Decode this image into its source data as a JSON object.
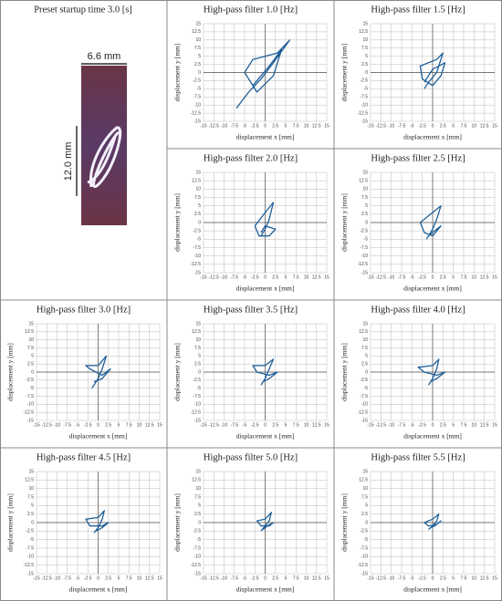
{
  "photo": {
    "title": "Preset startup time 3.0 [s]",
    "width_label": "6.6 mm",
    "height_label": "12.0 mm"
  },
  "chart_data": [
    {
      "type": "line",
      "title": "High-pass filter 1.0 [Hz]",
      "xlabel": "displacement x [mm]",
      "ylabel": "displacement y [mm]",
      "color": "#1f5f99",
      "grid": true,
      "xlim": [
        -15,
        15
      ],
      "ylim": [
        -15,
        15
      ],
      "xticks": [
        -15,
        -12.5,
        -10,
        -7.5,
        -5,
        -2.5,
        0,
        2.5,
        5,
        7.5,
        10,
        12.5,
        15
      ],
      "yticks": [
        -15,
        -12.5,
        -10,
        -7.5,
        -5,
        -2.5,
        0,
        2.5,
        5,
        7.5,
        10,
        12.5,
        15
      ],
      "x": [
        -7,
        -4,
        -1,
        2,
        6,
        3,
        -3,
        -5,
        -2,
        2,
        4,
        1,
        -3
      ],
      "values": [
        -11,
        -6,
        -2,
        3,
        10,
        6,
        4,
        0,
        -6,
        -1,
        7,
        2,
        -4
      ]
    },
    {
      "type": "line",
      "title": "High-pass filter 1.5 [Hz]",
      "xlabel": "displacement x [mm]",
      "ylabel": "displacement y [mm]",
      "color": "#1f5f99",
      "grid": true,
      "xlim": [
        -15,
        15
      ],
      "ylim": [
        -15,
        15
      ],
      "xticks": [
        -15,
        -12.5,
        -10,
        -7.5,
        -5,
        -2.5,
        0,
        2.5,
        5,
        7.5,
        10,
        12.5,
        15
      ],
      "yticks": [
        -15,
        -12.5,
        -10,
        -7.5,
        -5,
        -2.5,
        0,
        2.5,
        5,
        7.5,
        10,
        12.5,
        15
      ],
      "x": [
        -2,
        -1,
        1,
        2.5,
        1,
        -3,
        -2.5,
        0,
        2,
        3,
        0,
        -2
      ],
      "values": [
        -5,
        -3,
        0,
        6,
        4,
        2,
        -2,
        -4,
        -1,
        3,
        1,
        -3
      ]
    },
    {
      "type": "line",
      "title": "High-pass filter 2.0 [Hz]",
      "xlabel": "displacement x [mm]",
      "ylabel": "displacement y [mm]",
      "color": "#1f5f99",
      "grid": true,
      "xlim": [
        -15,
        15
      ],
      "ylim": [
        -15,
        15
      ],
      "xticks": [
        -15,
        -12.5,
        -10,
        -7.5,
        -5,
        -2.5,
        0,
        2.5,
        5,
        7.5,
        10,
        12.5,
        15
      ],
      "yticks": [
        -15,
        -12.5,
        -10,
        -7.5,
        -5,
        -2.5,
        0,
        2.5,
        5,
        7.5,
        10,
        12.5,
        15
      ],
      "x": [
        -1,
        0,
        1,
        2,
        0,
        -2.5,
        -1.5,
        1,
        2.5,
        0,
        -1
      ],
      "values": [
        -4,
        -2,
        1,
        6,
        3,
        -1,
        -4,
        -4,
        -2,
        -1,
        -3
      ]
    },
    {
      "type": "line",
      "title": "High-pass filter 2.5 [Hz]",
      "xlabel": "displacement x [mm]",
      "ylabel": "displacement y [mm]",
      "color": "#1f5f99",
      "grid": true,
      "xlim": [
        -15,
        15
      ],
      "ylim": [
        -15,
        15
      ],
      "xticks": [
        -15,
        -12.5,
        -10,
        -7.5,
        -5,
        -2.5,
        0,
        2.5,
        5,
        7.5,
        10,
        12.5,
        15
      ],
      "yticks": [
        -15,
        -12.5,
        -10,
        -7.5,
        -5,
        -2.5,
        0,
        2.5,
        5,
        7.5,
        10,
        12.5,
        15
      ],
      "x": [
        -1.5,
        0,
        1,
        2,
        0,
        -3,
        -2,
        0,
        2,
        1,
        -1
      ],
      "values": [
        -5,
        -2,
        1,
        5,
        3,
        0,
        -3,
        -4,
        -1,
        -2,
        -4
      ]
    },
    {
      "type": "line",
      "title": "High-pass filter 3.0 [Hz]",
      "xlabel": "displacement x [mm]",
      "ylabel": "displacement y [mm]",
      "color": "#1f5f99",
      "grid": true,
      "xlim": [
        -15,
        15
      ],
      "ylim": [
        -15,
        15
      ],
      "xticks": [
        -15,
        -12.5,
        -10,
        -7.5,
        -5,
        -2.5,
        0,
        2.5,
        5,
        7.5,
        10,
        12.5,
        15
      ],
      "yticks": [
        -15,
        -12.5,
        -10,
        -7.5,
        -5,
        -2.5,
        0,
        2.5,
        5,
        7.5,
        10,
        12.5,
        15
      ],
      "x": [
        -1.5,
        0,
        1,
        2,
        0,
        -3,
        -2,
        1,
        3,
        1,
        -1
      ],
      "values": [
        -5,
        -2,
        1,
        5,
        2,
        2,
        1,
        -1,
        1,
        -2,
        -3
      ]
    },
    {
      "type": "line",
      "title": "High-pass filter 3.5 [Hz]",
      "xlabel": "displacement x [mm]",
      "ylabel": "displacement y [mm]",
      "color": "#1f5f99",
      "grid": true,
      "xlim": [
        -15,
        15
      ],
      "ylim": [
        -15,
        15
      ],
      "xticks": [
        -15,
        -12.5,
        -10,
        -7.5,
        -5,
        -2.5,
        0,
        2.5,
        5,
        7.5,
        10,
        12.5,
        15
      ],
      "yticks": [
        -15,
        -12.5,
        -10,
        -7.5,
        -5,
        -2.5,
        0,
        2.5,
        5,
        7.5,
        10,
        12.5,
        15
      ],
      "x": [
        -1,
        0,
        1,
        2,
        0,
        -3,
        -2,
        1,
        3,
        1,
        -0.5
      ],
      "values": [
        -4,
        -2,
        1,
        4,
        2,
        2,
        0,
        -1,
        0,
        -2,
        -3
      ]
    },
    {
      "type": "line",
      "title": "High-pass filter 4.0 [Hz]",
      "xlabel": "displacement x [mm]",
      "ylabel": "displacement y [mm]",
      "color": "#1f5f99",
      "grid": true,
      "xlim": [
        -15,
        15
      ],
      "ylim": [
        -15,
        15
      ],
      "xticks": [
        -15,
        -12.5,
        -10,
        -7.5,
        -5,
        -2.5,
        0,
        2.5,
        5,
        7.5,
        10,
        12.5,
        15
      ],
      "yticks": [
        -15,
        -12.5,
        -10,
        -7.5,
        -5,
        -2.5,
        0,
        2.5,
        5,
        7.5,
        10,
        12.5,
        15
      ],
      "x": [
        -1,
        0,
        1,
        1.5,
        0,
        -3.5,
        -2,
        1,
        3,
        1,
        -0.5
      ],
      "values": [
        -4,
        -2,
        1,
        4,
        2,
        1.5,
        0,
        -1,
        0,
        -2,
        -3
      ]
    },
    {
      "type": "line",
      "title": "High-pass filter 4.5 [Hz]",
      "xlabel": "displacement x [mm]",
      "ylabel": "displacement y [mm]",
      "color": "#1f5f99",
      "grid": true,
      "xlim": [
        -15,
        15
      ],
      "ylim": [
        -15,
        15
      ],
      "xticks": [
        -15,
        -12.5,
        -10,
        -7.5,
        -5,
        -2.5,
        0,
        2.5,
        5,
        7.5,
        10,
        12.5,
        15
      ],
      "yticks": [
        -15,
        -12.5,
        -10,
        -7.5,
        -5,
        -2.5,
        0,
        2.5,
        5,
        7.5,
        10,
        12.5,
        15
      ],
      "x": [
        -1,
        0,
        1,
        1.5,
        0,
        -3,
        -2,
        1,
        2.5,
        1,
        -0.5
      ],
      "values": [
        -3,
        -1.5,
        1,
        3.5,
        1.5,
        1,
        -1,
        -1,
        0,
        -1.5,
        -2.5
      ]
    },
    {
      "type": "line",
      "title": "High-pass filter 5.0 [Hz]",
      "xlabel": "displacement x [mm]",
      "ylabel": "displacement y [mm]",
      "color": "#1f5f99",
      "grid": true,
      "xlim": [
        -15,
        15
      ],
      "ylim": [
        -15,
        15
      ],
      "xticks": [
        -15,
        -12.5,
        -10,
        -7.5,
        -5,
        -2.5,
        0,
        2.5,
        5,
        7.5,
        10,
        12.5,
        15
      ],
      "yticks": [
        -15,
        -12.5,
        -10,
        -7.5,
        -5,
        -2.5,
        0,
        2.5,
        5,
        7.5,
        10,
        12.5,
        15
      ],
      "x": [
        -1,
        0,
        1,
        1.5,
        0,
        -2,
        -1,
        1,
        2,
        0.5,
        -0.5
      ],
      "values": [
        -2.5,
        -1,
        0.5,
        3,
        1,
        0.5,
        -1,
        -1,
        0,
        -1,
        -2
      ]
    },
    {
      "type": "line",
      "title": "High-pass filter 5.5 [Hz]",
      "xlabel": "displacement x [mm]",
      "ylabel": "displacement y [mm]",
      "color": "#1f5f99",
      "grid": true,
      "xlim": [
        -15,
        15
      ],
      "ylim": [
        -15,
        15
      ],
      "xticks": [
        -15,
        -12.5,
        -10,
        -7.5,
        -5,
        -2.5,
        0,
        2.5,
        5,
        7.5,
        10,
        12.5,
        15
      ],
      "yticks": [
        -15,
        -12.5,
        -10,
        -7.5,
        -5,
        -2.5,
        0,
        2.5,
        5,
        7.5,
        10,
        12.5,
        15
      ],
      "x": [
        -1,
        0,
        1,
        1.5,
        0,
        -2,
        -1,
        1,
        2,
        0.5,
        -0.5
      ],
      "values": [
        -2,
        -1,
        0.5,
        2.5,
        1,
        0,
        -1,
        -0.5,
        0.5,
        -1,
        -1.5
      ]
    }
  ]
}
